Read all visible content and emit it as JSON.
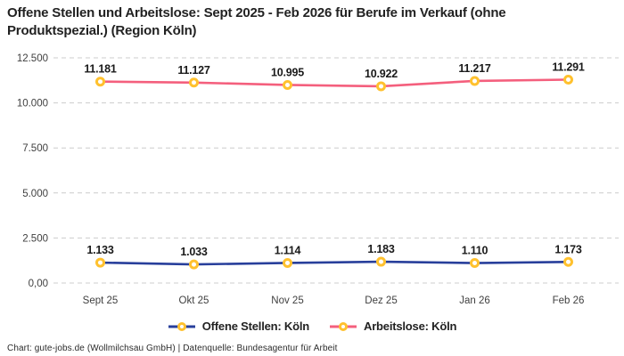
{
  "title": "Offene Stellen und Arbeitslose: Sept 2025 - Feb 2026 für Berufe im Verkauf (ohne Produktspezial.) (Region Köln)",
  "footer": "Chart: gute-jobs.de (Wollmilchsau GmbH) | Datenquelle: Bundesagentur für Arbeit",
  "colors": {
    "offene_stellen_line": "#283F9B",
    "arbeitslose_line": "#F45F7D",
    "marker_stroke": "#FFC12E",
    "marker_fill": "#FFFFFF",
    "gridline": "#CCCCCC",
    "axis_text": "#3F3F3F",
    "data_label": "#1A1A1A"
  },
  "chart_data": {
    "type": "line",
    "title": "Offene Stellen und Arbeitslose: Sept 2025 - Feb 2026 für Berufe im Verkauf (ohne Produktspezial.) (Region Köln)",
    "categories": [
      "Sept 25",
      "Okt 25",
      "Nov 25",
      "Dez 25",
      "Jan 26",
      "Feb 26"
    ],
    "series": [
      {
        "name": "Offene Stellen: Köln",
        "values": [
          1133,
          1033,
          1114,
          1183,
          1110,
          1173
        ],
        "labels": [
          "1.133",
          "1.033",
          "1.114",
          "1.183",
          "1.110",
          "1.173"
        ],
        "color_key": "offene_stellen_line"
      },
      {
        "name": "Arbeitslose: Köln",
        "values": [
          11181,
          11127,
          10995,
          10922,
          11217,
          11291
        ],
        "labels": [
          "11.181",
          "11.127",
          "10.995",
          "10.922",
          "11.217",
          "11.291"
        ],
        "color_key": "arbeitslose_line"
      }
    ],
    "xlabel": "",
    "ylabel": "",
    "ylim": [
      0,
      12500
    ],
    "yticks": [
      0,
      2500,
      5000,
      7500,
      10000,
      12500
    ],
    "ytick_labels": [
      "0,00",
      "2.500",
      "5.000",
      "7.500",
      "10.000",
      "12.500"
    ],
    "grid": "horizontal-dashed",
    "legend_position": "bottom-center",
    "data_labels_visible": true
  }
}
